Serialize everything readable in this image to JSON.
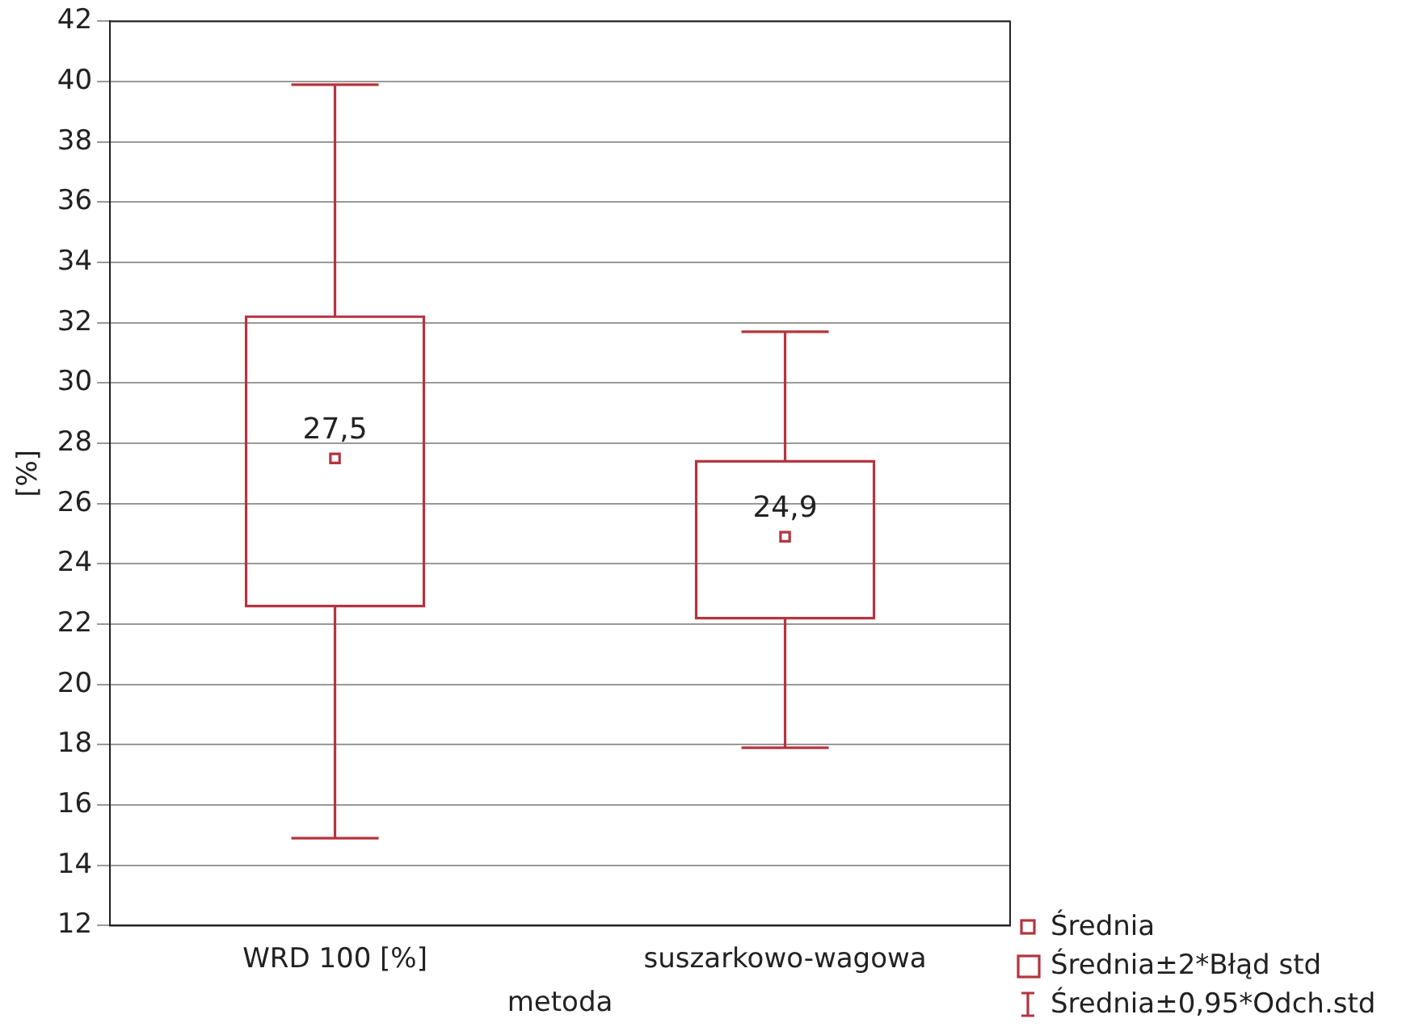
{
  "chart_data": {
    "type": "box",
    "xlabel": "metoda",
    "ylabel": "[%]",
    "categories": [
      "WRD 100 [%]",
      "suszarkowo-wagowa"
    ],
    "boxes": [
      {
        "low": 14.9,
        "q1": 22.6,
        "median": 27.5,
        "q3": 32.2,
        "high": 39.9
      },
      {
        "low": 17.9,
        "q1": 22.2,
        "median": 24.9,
        "q3": 27.4,
        "high": 31.7
      }
    ],
    "value_labels": [
      "27,5",
      "24,9"
    ],
    "color": "#b5343f",
    "ylim": [
      12,
      42
    ],
    "yticks": [
      12,
      14,
      16,
      18,
      20,
      22,
      24,
      26,
      28,
      30,
      32,
      34,
      36,
      38,
      40,
      42
    ],
    "grid": "y",
    "marker": "square",
    "annotations": [
      "Średnia",
      "Średnia±2*Błąd std",
      "Średnia±0,95*Odch.std"
    ]
  }
}
